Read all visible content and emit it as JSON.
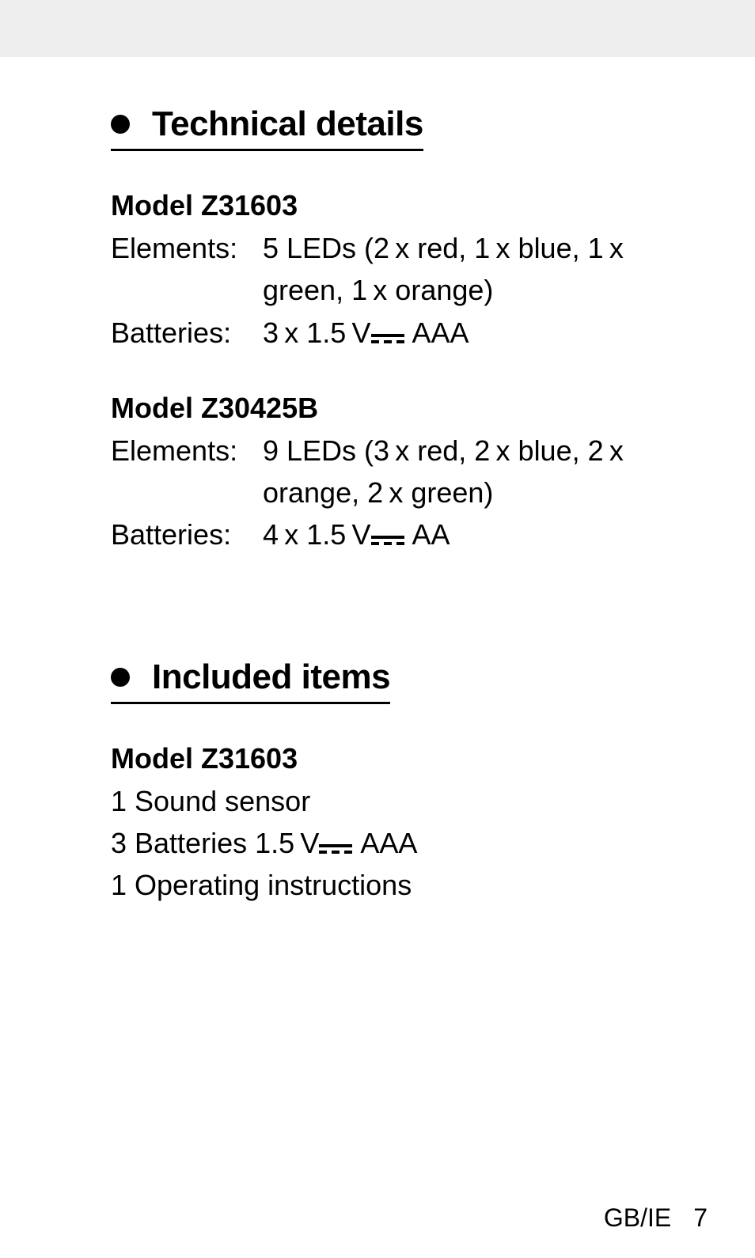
{
  "sections": {
    "technical": {
      "title": "Technical details",
      "models": [
        {
          "name": "Model Z31603",
          "rows": [
            {
              "label": "Elements:",
              "value_pre": "5 LEDs (2 x red, 1 x blue, 1 x green, 1 x orange)",
              "dc": false,
              "value_post": ""
            },
            {
              "label": "Batteries:",
              "value_pre": "3 x 1.5 V",
              "dc": true,
              "value_post": " AAA"
            }
          ]
        },
        {
          "name": "Model Z30425B",
          "rows": [
            {
              "label": "Elements:",
              "value_pre": "9 LEDs (3 x red, 2 x blue, 2 x orange, 2 x green)",
              "dc": false,
              "value_post": ""
            },
            {
              "label": "Batteries:",
              "value_pre": "4 x 1.5 V",
              "dc": true,
              "value_post": " AA"
            }
          ]
        }
      ]
    },
    "included": {
      "title": "Included items",
      "models": [
        {
          "name": "Model Z31603",
          "lines": [
            {
              "pre": "1 Sound sensor",
              "dc": false,
              "post": ""
            },
            {
              "pre": "3 Batteries 1.5 V",
              "dc": true,
              "post": " AAA"
            },
            {
              "pre": "1 Operating instructions",
              "dc": false,
              "post": ""
            }
          ]
        }
      ]
    }
  },
  "footer": {
    "region": "GB/IE",
    "page": "7"
  },
  "colors": {
    "page_bg": "#ffffff",
    "outer_bg": "#eeeeee",
    "text": "#000000",
    "rule": "#000000"
  },
  "typography": {
    "heading_size_pt": 44,
    "subheading_size_pt": 36,
    "body_size_pt": 36,
    "footer_size_pt": 32
  }
}
